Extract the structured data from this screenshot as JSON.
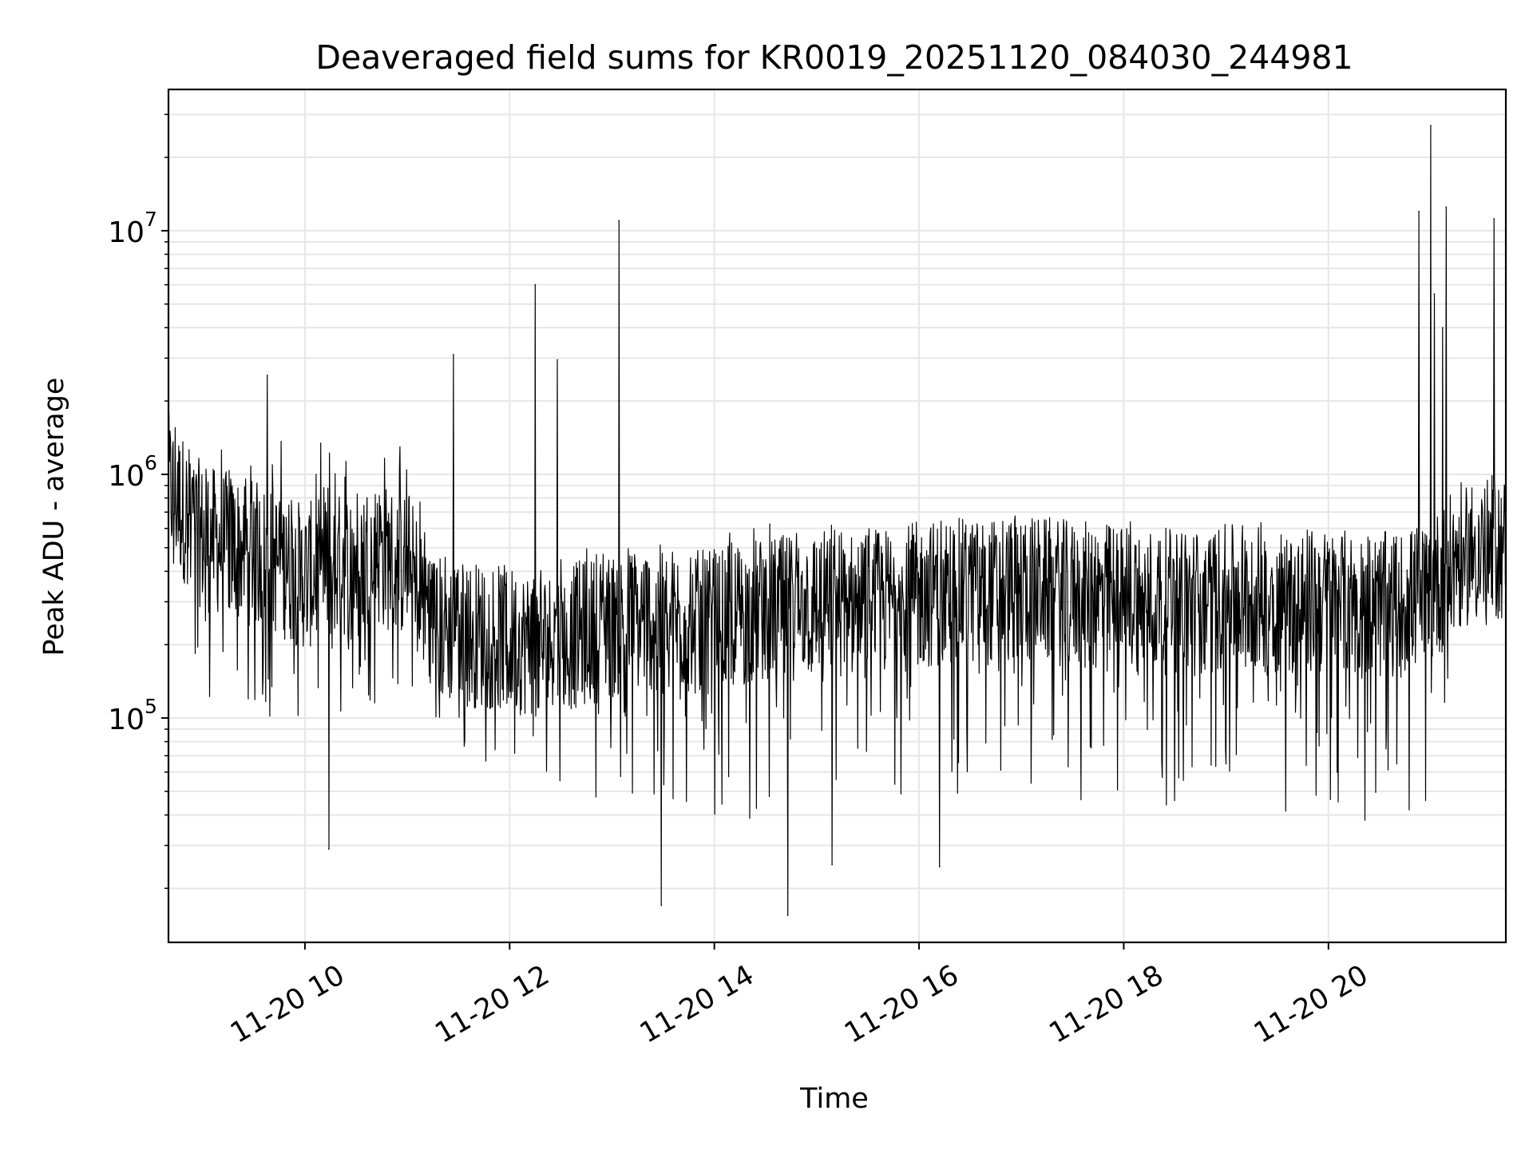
{
  "chart_data": {
    "type": "line",
    "title": "Deaveraged field sums for KR0019_20251120_084030_244981",
    "xlabel": "Time",
    "ylabel": "Peak ADU - average",
    "x_tick_labels": [
      "11-20 10",
      "11-20 12",
      "11-20 14",
      "11-20 16",
      "11-20 18",
      "11-20 20"
    ],
    "x_ticks": [
      "2025-11-20 10:00",
      "2025-11-20 12:00",
      "2025-11-20 14:00",
      "2025-11-20 16:00",
      "2025-11-20 18:00",
      "2025-11-20 20:00"
    ],
    "y_tick_labels": [
      {
        "base": "10",
        "exp": "5",
        "value": 100000
      },
      {
        "base": "10",
        "exp": "6",
        "value": 1000000
      },
      {
        "base": "10",
        "exp": "7",
        "value": 10000000
      }
    ],
    "xlim": [
      "2025-11-20 08:40",
      "2025-11-20 21:44"
    ],
    "ylim": [
      12000,
      38000000
    ],
    "yscale": "log",
    "grid": true,
    "line_color": "#000000",
    "grid_color": "#e6e6e6",
    "series": [
      {
        "x": [
          "2025-11-20 08:40",
          "2025-11-20 09:00",
          "2025-11-20 09:20",
          "2025-11-20 09:40",
          "2025-11-20 10:00",
          "2025-11-20 10:20",
          "2025-11-20 10:40",
          "2025-11-20 11:00",
          "2025-11-20 11:20",
          "2025-11-20 11:40",
          "2025-11-20 12:00",
          "2025-11-20 12:20",
          "2025-11-20 12:40",
          "2025-11-20 13:00",
          "2025-11-20 13:20",
          "2025-11-20 13:40",
          "2025-11-20 14:00",
          "2025-11-20 14:20",
          "2025-11-20 14:40",
          "2025-11-20 15:00",
          "2025-11-20 15:20",
          "2025-11-20 15:40",
          "2025-11-20 16:00",
          "2025-11-20 16:20",
          "2025-11-20 16:40",
          "2025-11-20 17:00",
          "2025-11-20 17:20",
          "2025-11-20 17:40",
          "2025-11-20 18:00",
          "2025-11-20 18:20",
          "2025-11-20 18:40",
          "2025-11-20 19:00",
          "2025-11-20 19:20",
          "2025-11-20 19:40",
          "2025-11-20 20:00",
          "2025-11-20 20:20",
          "2025-11-20 20:40",
          "2025-11-20 21:00",
          "2025-11-20 21:20",
          "2025-11-20 21:40"
        ],
        "center": [
          900000,
          550000,
          500000,
          450000,
          380000,
          420000,
          480000,
          420000,
          230000,
          220000,
          210000,
          200000,
          220000,
          240000,
          260000,
          250000,
          240000,
          270000,
          280000,
          300000,
          290000,
          300000,
          320000,
          330000,
          330000,
          340000,
          330000,
          310000,
          320000,
          300000,
          300000,
          310000,
          310000,
          300000,
          300000,
          290000,
          290000,
          330000,
          480000,
          500000
        ],
        "low": [
          280000,
          100000,
          90000,
          95000,
          80000,
          85000,
          110000,
          140000,
          85000,
          65000,
          55000,
          60000,
          50000,
          45000,
          40000,
          35000,
          40000,
          38000,
          35000,
          42000,
          45000,
          45000,
          42000,
          48000,
          45000,
          50000,
          48000,
          40000,
          42000,
          45000,
          40000,
          48000,
          45000,
          40000,
          40000,
          38000,
          35000,
          45000,
          190000,
          230000
        ],
        "high": [
          1800000,
          1400000,
          1300000,
          1400000,
          1500000,
          1300000,
          1600000,
          1300000,
          480000,
          450000,
          420000,
          480000,
          520000,
          550000,
          480000,
          480000,
          600000,
          620000,
          640000,
          660000,
          600000,
          650000,
          700000,
          680000,
          700000,
          680000,
          660000,
          640000,
          680000,
          640000,
          640000,
          650000,
          640000,
          640000,
          600000,
          600000,
          560000,
          600000,
          800000,
          800000
        ],
        "spikes": [
          {
            "t": "2025-11-20 09:38",
            "value": 2550000
          },
          {
            "t": "2025-11-20 11:27",
            "value": 3100000
          },
          {
            "t": "2025-11-20 12:15",
            "value": 6000000
          },
          {
            "t": "2025-11-20 12:28",
            "value": 2950000
          },
          {
            "t": "2025-11-20 13:04",
            "value": 11000000
          },
          {
            "t": "2025-11-20 13:29",
            "value": 17000
          },
          {
            "t": "2025-11-20 14:43",
            "value": 15500
          },
          {
            "t": "2025-11-20 20:53",
            "value": 12000000
          },
          {
            "t": "2025-11-20 21:00",
            "value": 27000000
          },
          {
            "t": "2025-11-20 21:02",
            "value": 5500000
          },
          {
            "t": "2025-11-20 21:09",
            "value": 12500000
          },
          {
            "t": "2025-11-20 21:07",
            "value": 4000000
          },
          {
            "t": "2025-11-20 21:37",
            "value": 11200000
          },
          {
            "t": "2025-11-20 10:14",
            "value": 29000
          },
          {
            "t": "2025-11-20 15:09",
            "value": 25000
          },
          {
            "t": "2025-11-20 16:12",
            "value": 24500
          }
        ]
      }
    ]
  }
}
